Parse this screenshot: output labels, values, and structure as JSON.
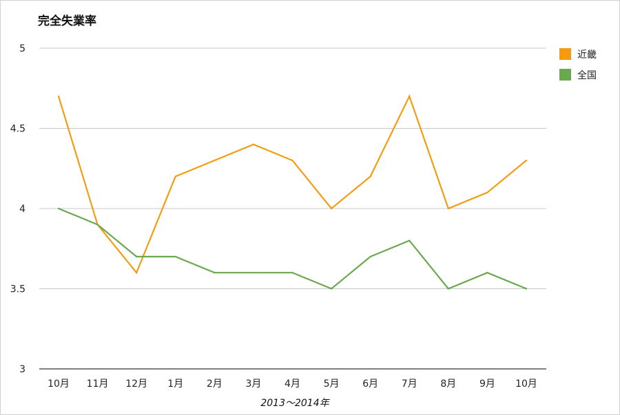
{
  "chart_data": {
    "type": "line",
    "title": "完全失業率",
    "xlabel": "2013〜2014年",
    "ylabel": "",
    "categories": [
      "10月",
      "11月",
      "12月",
      "1月",
      "2月",
      "3月",
      "4月",
      "5月",
      "6月",
      "7月",
      "8月",
      "9月",
      "10月"
    ],
    "ylim": [
      3,
      5
    ],
    "yticks": [
      "3",
      "3.5",
      "4",
      "4.5",
      "5"
    ],
    "grid": true,
    "legend_position": "right",
    "series": [
      {
        "name": "近畿",
        "color": "#f39c12",
        "values": [
          4.7,
          3.9,
          3.6,
          4.2,
          4.3,
          4.4,
          4.3,
          4.0,
          4.2,
          4.7,
          4.0,
          4.1,
          4.3
        ]
      },
      {
        "name": "全国",
        "color": "#6aa84f",
        "values": [
          4.0,
          3.9,
          3.7,
          3.7,
          3.6,
          3.6,
          3.6,
          3.5,
          3.7,
          3.8,
          3.5,
          3.6,
          3.5
        ]
      }
    ]
  }
}
